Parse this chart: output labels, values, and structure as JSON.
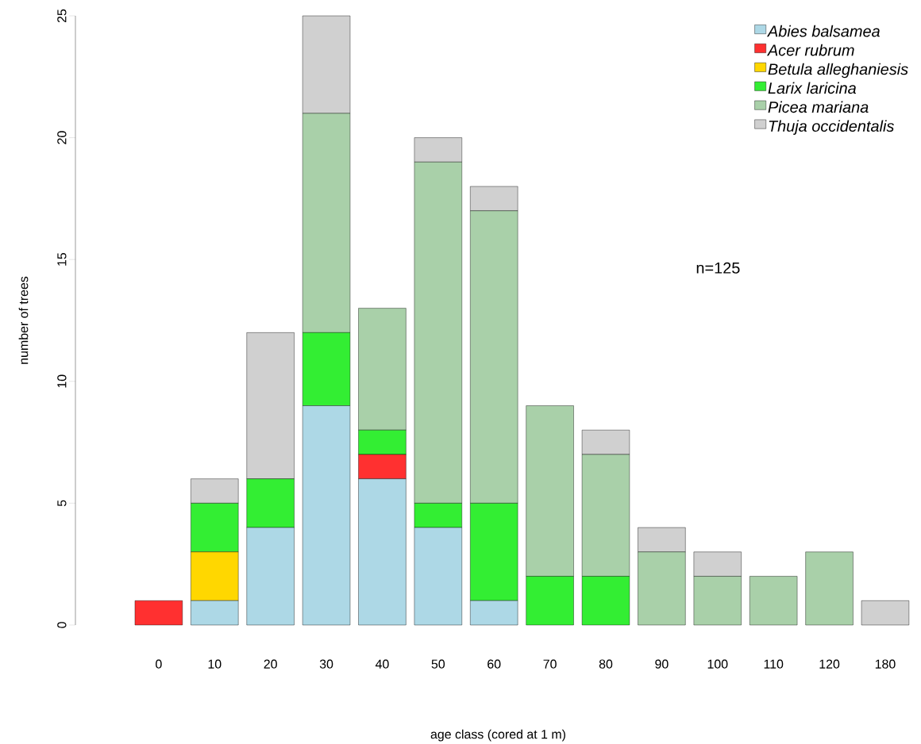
{
  "chart_data": {
    "type": "bar",
    "stacked": true,
    "xlabel": "age class (cored at 1 m)",
    "ylabel": "number of trees",
    "categories": [
      "0",
      "10",
      "20",
      "30",
      "40",
      "50",
      "60",
      "70",
      "80",
      "90",
      "100",
      "110",
      "120",
      "180"
    ],
    "series": [
      {
        "name": "Abies balsamea",
        "color": "#add8e6",
        "values": [
          0,
          1,
          4,
          9,
          6,
          4,
          1,
          0,
          0,
          0,
          0,
          0,
          0,
          0
        ]
      },
      {
        "name": "Acer rubrum",
        "color": "#ff3030",
        "values": [
          1,
          0,
          0,
          0,
          1,
          0,
          0,
          0,
          0,
          0,
          0,
          0,
          0,
          0
        ]
      },
      {
        "name": "Betula alleghaniesis",
        "color": "#ffd700",
        "values": [
          0,
          2,
          0,
          0,
          0,
          0,
          0,
          0,
          0,
          0,
          0,
          0,
          0,
          0
        ]
      },
      {
        "name": "Larix laricina",
        "color": "#33ee33",
        "values": [
          0,
          2,
          2,
          3,
          1,
          1,
          4,
          2,
          2,
          0,
          0,
          0,
          0,
          0
        ]
      },
      {
        "name": "Picea mariana",
        "color": "#a9d0a9",
        "values": [
          0,
          0,
          0,
          9,
          5,
          14,
          12,
          7,
          5,
          3,
          2,
          2,
          3,
          0
        ]
      },
      {
        "name": "Thuja occidentalis",
        "color": "#d0d0d0",
        "values": [
          0,
          1,
          6,
          4,
          0,
          1,
          1,
          0,
          1,
          1,
          1,
          0,
          0,
          1
        ]
      }
    ],
    "ylim": [
      0,
      25
    ],
    "yticks": [
      0,
      5,
      10,
      15,
      20,
      25
    ],
    "legend": "top right",
    "grid": false,
    "annotations": [
      "n=125"
    ]
  }
}
